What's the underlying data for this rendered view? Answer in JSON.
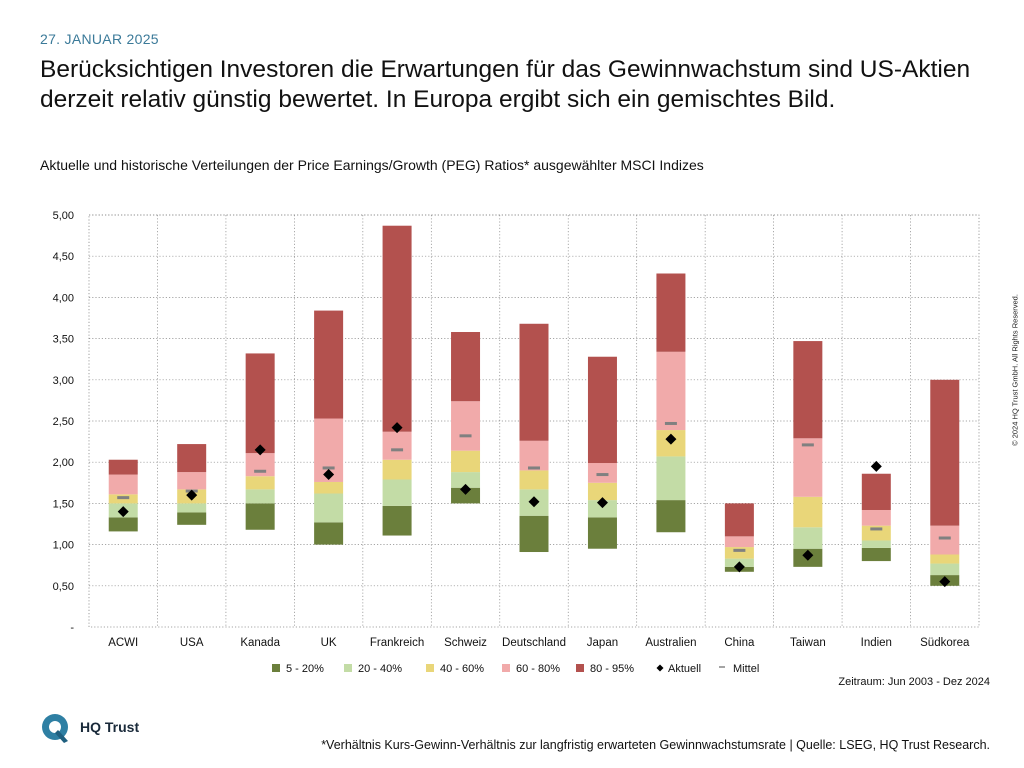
{
  "header": {
    "date": "27. JANUAR 2025",
    "headline": "Berücksichtigen Investoren die Erwartungen für das Gewinnwachstum sind US-Aktien derzeit relativ günstig bewertet. In Europa ergibt sich ein gemischtes Bild.",
    "subtitle": "Aktuelle und historische Verteilungen der Price Earnings/Growth (PEG) Ratios* ausgewählter MSCI Indizes"
  },
  "copyright": "© 2024 HQ Trust GmbH. All Rights Reserved.",
  "logo": {
    "text": "HQ Trust",
    "color": "#2e7fa3"
  },
  "footer": {
    "period": "Zeitraum: Jun 2003 - Dez 2024",
    "footnote": "*Verhältnis Kurs-Gewinn-Verhältnis zur langfristig erwarteten Gewinnwachstumsrate | Quelle: LSEG, HQ Trust Research."
  },
  "chart_data": {
    "type": "bar",
    "subtype": "floating stacked percentile bands",
    "categories": [
      "ACWI",
      "USA",
      "Kanada",
      "UK",
      "Frankreich",
      "Schweiz",
      "Deutschland",
      "Japan",
      "Australien",
      "China",
      "Taiwan",
      "Indien",
      "Südkorea"
    ],
    "ylim": [
      0,
      5
    ],
    "yticks": [
      0,
      0.5,
      1,
      1.5,
      2,
      2.5,
      3,
      3.5,
      4,
      4.5,
      5
    ],
    "ytick_labels": [
      "-",
      "0,50",
      "1,00",
      "1,50",
      "2,00",
      "2,50",
      "3,00",
      "3,50",
      "4,00",
      "4,50",
      "5,00"
    ],
    "grid": true,
    "legend_position": "bottom",
    "band_names": [
      "5 - 20%",
      "20 - 40%",
      "40 - 60%",
      "60 - 80%",
      "80 - 95%"
    ],
    "band_colors": [
      "#6b7f3c",
      "#c3dca6",
      "#e9d679",
      "#f1aaaa",
      "#b3514e"
    ],
    "percentiles": {
      "p5": [
        1.16,
        1.24,
        1.18,
        1.0,
        1.11,
        1.5,
        0.91,
        0.95,
        1.15,
        0.67,
        0.73,
        0.8,
        0.5
      ],
      "p20": [
        1.33,
        1.39,
        1.5,
        1.27,
        1.47,
        1.69,
        1.35,
        1.33,
        1.54,
        0.73,
        0.95,
        0.96,
        0.63
      ],
      "p40": [
        1.5,
        1.5,
        1.67,
        1.62,
        1.79,
        1.88,
        1.67,
        1.54,
        2.07,
        0.83,
        1.21,
        1.05,
        0.77
      ],
      "p60": [
        1.61,
        1.67,
        1.83,
        1.76,
        2.03,
        2.14,
        1.9,
        1.75,
        2.39,
        0.97,
        1.58,
        1.23,
        0.88
      ],
      "p80": [
        1.85,
        1.88,
        2.11,
        2.53,
        2.37,
        2.74,
        2.26,
        1.99,
        3.34,
        1.1,
        2.29,
        1.42,
        1.23
      ],
      "p95": [
        2.03,
        2.22,
        3.32,
        3.84,
        4.87,
        3.58,
        3.68,
        3.28,
        4.29,
        1.5,
        3.47,
        1.86,
        3.0
      ]
    },
    "series": [
      {
        "name": "Aktuell",
        "marker": "diamond",
        "color": "#000000",
        "values": [
          1.4,
          1.6,
          2.15,
          1.85,
          2.42,
          1.67,
          1.52,
          1.51,
          2.28,
          0.73,
          0.87,
          1.95,
          0.55
        ]
      },
      {
        "name": "Mittel",
        "marker": "dash",
        "color": "#808080",
        "values": [
          1.57,
          1.65,
          1.89,
          1.93,
          2.15,
          2.32,
          1.93,
          1.85,
          2.47,
          0.93,
          2.21,
          1.19,
          1.08
        ]
      }
    ]
  }
}
